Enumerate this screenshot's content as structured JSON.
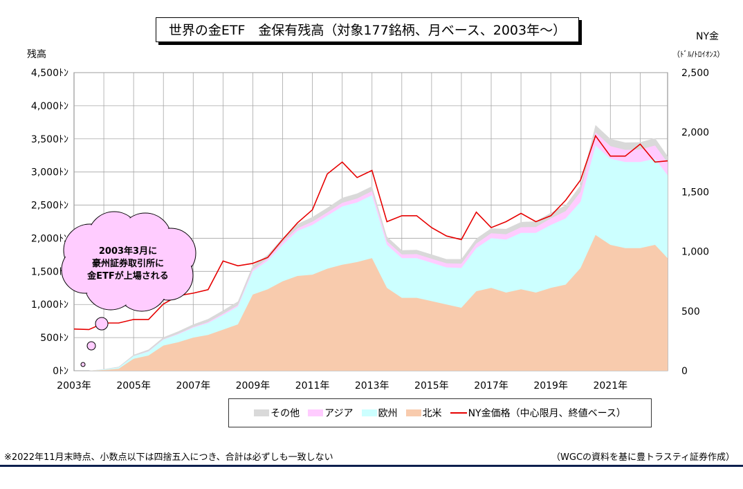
{
  "title": "世界の金ETF　金保有残高（対象177銘柄、月ベース、2003年～）",
  "left_axis_title": "残高",
  "right_axis_title": "NY金",
  "right_axis_unit": "（ﾄﾞﾙ/ﾄﾛｲｵﾝｽ）",
  "callout_text": [
    "2003年3月に",
    "豪州証券取引所に",
    "金ETFが上場される"
  ],
  "legend": {
    "other": "その他",
    "asia": "アジア",
    "europe": "欧州",
    "north_america": "北米",
    "price": "NY金価格（中心限月、終値ベース）"
  },
  "footnote_left": "※2022年11月末時点、小数点以下は四捨五入につき、合計は必ずしも一致しない",
  "footnote_right": "（WGCの資料を基に豊トラスティ証券作成）",
  "colors": {
    "other": "#d9d9d9",
    "asia": "#ffccff",
    "europe": "#ccffff",
    "north_america": "#f8cbad",
    "price": "#e60000",
    "callout": "#ffccff",
    "grid": "#a6a6a6"
  },
  "chart_data": {
    "type": "area",
    "x_unit": "year",
    "x_ticks": [
      2003,
      2005,
      2007,
      2009,
      2011,
      2013,
      2015,
      2017,
      2019,
      2021
    ],
    "x_tick_labels": [
      "2003年",
      "2005年",
      "2007年",
      "2009年",
      "2011年",
      "2013年",
      "2015年",
      "2017年",
      "2019年",
      "2021年"
    ],
    "xlim": [
      2003.0,
      2022.92
    ],
    "left_axis": {
      "ylim": [
        0,
        4500
      ],
      "ticks": [
        0,
        500,
        1000,
        1500,
        2000,
        2500,
        3000,
        3500,
        4000,
        4500
      ],
      "tick_labels": [
        "0ﾄﾝ",
        "500ﾄﾝ",
        "1,000ﾄﾝ",
        "1,500ﾄﾝ",
        "2,000ﾄﾝ",
        "2,500ﾄﾝ",
        "3,000ﾄﾝ",
        "3,500ﾄﾝ",
        "4,000ﾄﾝ",
        "4,500ﾄﾝ"
      ]
    },
    "right_axis": {
      "ylim": [
        0,
        2500
      ],
      "ticks": [
        0,
        500,
        1000,
        1500,
        2000,
        2500
      ],
      "tick_labels": [
        "0",
        "500",
        "1,000",
        "1,500",
        "2,000",
        "2,500"
      ]
    },
    "x": [
      2003.0,
      2003.5,
      2004.0,
      2004.5,
      2005.0,
      2005.5,
      2006.0,
      2006.5,
      2007.0,
      2007.5,
      2008.0,
      2008.5,
      2009.0,
      2009.5,
      2010.0,
      2010.5,
      2011.0,
      2011.5,
      2012.0,
      2012.5,
      2013.0,
      2013.5,
      2014.0,
      2014.5,
      2015.0,
      2015.5,
      2016.0,
      2016.5,
      2017.0,
      2017.5,
      2018.0,
      2018.5,
      2019.0,
      2019.5,
      2020.0,
      2020.5,
      2021.0,
      2021.5,
      2022.0,
      2022.5,
      2022.92
    ],
    "series": [
      {
        "name": "北米",
        "axis": "left",
        "values": [
          0,
          0,
          10,
          30,
          180,
          230,
          380,
          430,
          500,
          540,
          620,
          700,
          1150,
          1230,
          1350,
          1430,
          1450,
          1540,
          1600,
          1640,
          1700,
          1250,
          1100,
          1100,
          1050,
          1000,
          950,
          1200,
          1250,
          1180,
          1230,
          1180,
          1250,
          1300,
          1550,
          2050,
          1900,
          1850,
          1850,
          1900,
          1700
        ]
      },
      {
        "name": "欧州",
        "axis": "left",
        "values": [
          0,
          0,
          10,
          20,
          40,
          60,
          90,
          120,
          150,
          180,
          220,
          270,
          350,
          430,
          550,
          680,
          750,
          800,
          880,
          900,
          950,
          650,
          600,
          600,
          580,
          560,
          600,
          650,
          750,
          800,
          850,
          900,
          950,
          1000,
          1000,
          1350,
          1300,
          1300,
          1300,
          1300,
          1250
        ]
      },
      {
        "name": "アジア",
        "axis": "left",
        "values": [
          0,
          0,
          0,
          0,
          0,
          5,
          5,
          10,
          10,
          15,
          20,
          20,
          30,
          30,
          40,
          40,
          50,
          50,
          55,
          60,
          60,
          55,
          55,
          60,
          60,
          60,
          65,
          70,
          75,
          80,
          85,
          90,
          100,
          110,
          150,
          200,
          190,
          185,
          190,
          200,
          190
        ]
      },
      {
        "name": "その他",
        "axis": "left",
        "values": [
          0,
          0,
          5,
          10,
          20,
          25,
          30,
          35,
          40,
          45,
          50,
          55,
          60,
          60,
          65,
          65,
          70,
          70,
          75,
          75,
          75,
          70,
          65,
          65,
          65,
          65,
          70,
          75,
          75,
          80,
          80,
          85,
          85,
          90,
          100,
          110,
          110,
          110,
          110,
          110,
          100
        ]
      },
      {
        "name": "NY金価格（中心限月、終値ベース）",
        "axis": "right",
        "values": [
          350,
          345,
          400,
          400,
          430,
          430,
          560,
          630,
          650,
          680,
          920,
          880,
          900,
          950,
          1100,
          1240,
          1350,
          1650,
          1750,
          1620,
          1680,
          1250,
          1300,
          1300,
          1200,
          1130,
          1100,
          1330,
          1200,
          1250,
          1320,
          1250,
          1300,
          1430,
          1600,
          1970,
          1800,
          1800,
          1900,
          1750,
          1760
        ]
      }
    ]
  }
}
